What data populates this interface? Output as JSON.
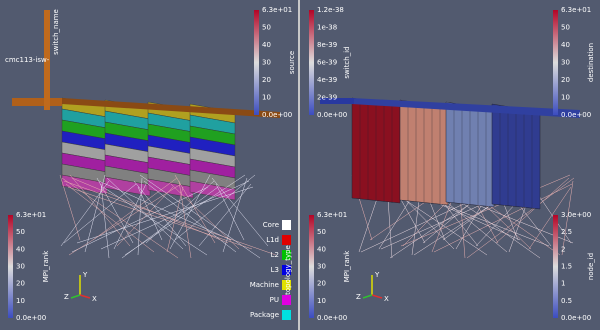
{
  "panels": [
    {
      "colorbars": [
        {
          "title": "switch_name",
          "ticks": [
            "cmc113-isw-"
          ]
        },
        {
          "title": "source",
          "ticks": [
            "6.3e+01",
            "50",
            "40",
            "30",
            "20",
            "10",
            "0.0e+00"
          ]
        },
        {
          "title": "MPI_rank",
          "ticks": [
            "6.3e+01",
            "50",
            "40",
            "30",
            "20",
            "10",
            "0.0e+00"
          ]
        }
      ],
      "legend": {
        "title": "topology_type",
        "items": [
          {
            "label": "Core",
            "color": "#ffffff"
          },
          {
            "label": "L1d",
            "color": "#e00000"
          },
          {
            "label": "L2",
            "color": "#00c000"
          },
          {
            "label": "L3",
            "color": "#0000e0"
          },
          {
            "label": "Machine",
            "color": "#e0e000"
          },
          {
            "label": "PU",
            "color": "#e000e0"
          },
          {
            "label": "Package",
            "color": "#00e0e0"
          }
        ]
      }
    },
    {
      "colorbars": [
        {
          "title": "switch_id",
          "ticks": [
            "1.2e-38",
            "1e-38",
            "8e-39",
            "6e-39",
            "4e-39",
            "2e-39",
            "0.0e+00"
          ]
        },
        {
          "title": "destination",
          "ticks": [
            "6.3e+01",
            "50",
            "40",
            "30",
            "20",
            "10",
            "0.0e+00"
          ]
        },
        {
          "title": "MPI_rank",
          "ticks": [
            "6.3e+01",
            "50",
            "40",
            "30",
            "20",
            "10",
            "0.0e+00"
          ]
        },
        {
          "title": "node_id",
          "ticks": [
            "3.0e+00",
            "2.5",
            "2",
            "1.5",
            "1",
            "0.5",
            "0.0e+00"
          ]
        }
      ]
    }
  ],
  "axes": {
    "x": "X",
    "y": "Y",
    "z": "Z"
  }
}
